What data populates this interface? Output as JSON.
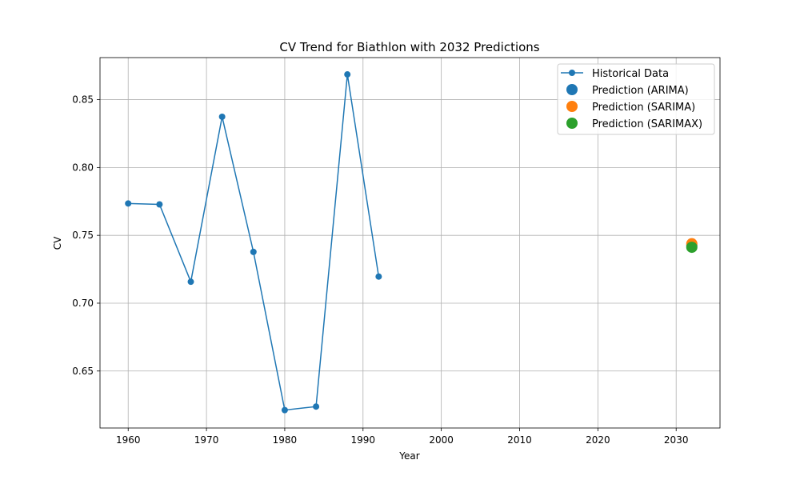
{
  "chart_data": {
    "type": "line",
    "title": "CV Trend for Biathlon with 2032 Predictions",
    "xlabel": "Year",
    "ylabel": "CV",
    "xlim": [
      1956.4,
      2035.6
    ],
    "ylim": [
      0.608,
      0.881
    ],
    "x_ticks": [
      1960,
      1970,
      1980,
      1990,
      2000,
      2010,
      2020,
      2030
    ],
    "x_tick_labels": [
      "1960",
      "1970",
      "1980",
      "1990",
      "2000",
      "2010",
      "2020",
      "2030"
    ],
    "y_ticks": [
      0.65,
      0.7,
      0.75,
      0.8,
      0.85
    ],
    "y_tick_labels": [
      "0.65",
      "0.70",
      "0.75",
      "0.80",
      "0.85"
    ],
    "grid": true,
    "legend_position": "top-right",
    "series": [
      {
        "name": "Historical Data",
        "kind": "line-marker",
        "color": "#1f77b4",
        "x": [
          1960,
          1964,
          1968,
          1972,
          1976,
          1980,
          1984,
          1988,
          1992
        ],
        "y": [
          0.7735,
          0.7728,
          0.7158,
          0.8374,
          0.7378,
          0.6212,
          0.6238,
          0.8686,
          0.7196
        ]
      },
      {
        "name": "Prediction (ARIMA)",
        "kind": "point",
        "color": "#1f77b4",
        "x": [
          2032
        ],
        "y": [
          0.7425
        ]
      },
      {
        "name": "Prediction (SARIMA)",
        "kind": "point",
        "color": "#ff7f0e",
        "x": [
          2032
        ],
        "y": [
          0.7438
        ]
      },
      {
        "name": "Prediction (SARIMAX)",
        "kind": "point",
        "color": "#2ca02c",
        "x": [
          2032
        ],
        "y": [
          0.7412
        ]
      }
    ]
  }
}
